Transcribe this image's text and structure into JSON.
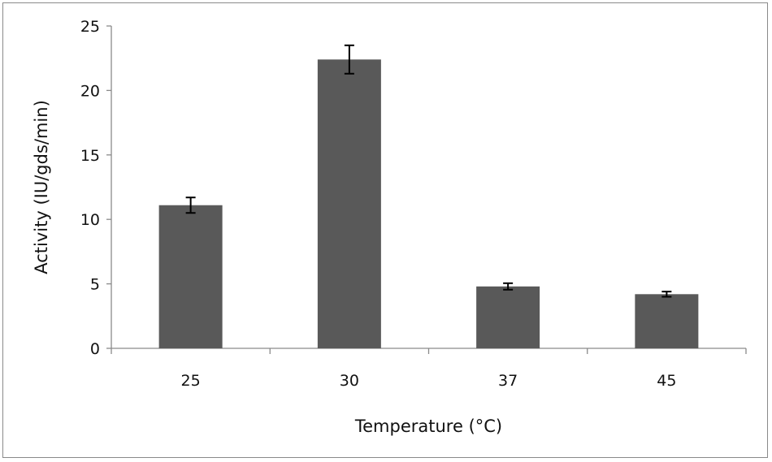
{
  "chart_data": {
    "type": "bar",
    "title": "",
    "xlabel": "Temperature (°C)",
    "ylabel": "Activity (IU/gds/min)",
    "categories": [
      "25",
      "30",
      "37",
      "45"
    ],
    "values": [
      11.1,
      22.4,
      4.8,
      4.2
    ],
    "errors": [
      0.6,
      1.1,
      0.25,
      0.2
    ],
    "ylim": [
      0,
      25
    ],
    "yticks": [
      "0",
      "5",
      "10",
      "15",
      "20",
      "25"
    ],
    "grid": false,
    "legend": "none",
    "bar_color": "#595959",
    "axis_color": "#8a8a8a",
    "error_color": "#000000"
  }
}
